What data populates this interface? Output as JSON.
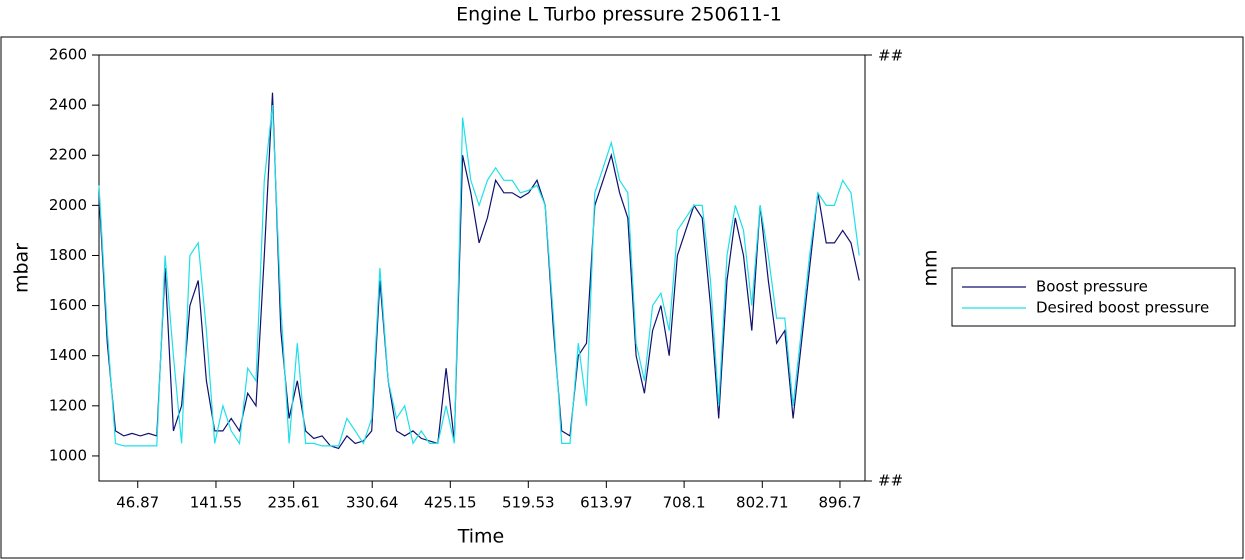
{
  "chart_data": {
    "type": "line",
    "title": "Engine L   Turbo pressure 250611-1",
    "xlabel": "Time",
    "ylabel": "mbar",
    "y2label": "mm",
    "y2tick_labels": [
      "##",
      "##"
    ],
    "xlim": [
      0,
      927
    ],
    "xticks": [
      46.87,
      141.55,
      235.61,
      330.64,
      425.15,
      519.53,
      613.97,
      708.1,
      802.71,
      896.7
    ],
    "ylim": [
      900,
      2600
    ],
    "yticks": [
      1000,
      1200,
      1400,
      1600,
      1800,
      2000,
      2200,
      2400,
      2600
    ],
    "x": [
      0,
      10,
      20,
      30,
      40,
      50,
      60,
      70,
      80,
      90,
      100,
      110,
      120,
      130,
      140,
      150,
      160,
      170,
      180,
      190,
      200,
      210,
      220,
      230,
      240,
      250,
      260,
      270,
      280,
      290,
      300,
      310,
      320,
      330,
      340,
      350,
      360,
      370,
      380,
      390,
      400,
      410,
      420,
      430,
      440,
      450,
      460,
      470,
      480,
      490,
      500,
      510,
      520,
      530,
      540,
      550,
      560,
      570,
      580,
      590,
      600,
      610,
      620,
      630,
      640,
      650,
      660,
      670,
      680,
      690,
      700,
      710,
      720,
      730,
      740,
      750,
      760,
      770,
      780,
      790,
      800,
      810,
      820,
      830,
      840,
      850,
      860,
      870,
      880,
      890,
      900,
      910,
      920
    ],
    "series": [
      {
        "name": "Boost pressure",
        "color": "#101070",
        "values": [
          2050,
          1450,
          1100,
          1080,
          1090,
          1080,
          1090,
          1080,
          1750,
          1100,
          1200,
          1600,
          1700,
          1300,
          1100,
          1100,
          1150,
          1100,
          1250,
          1200,
          1800,
          2450,
          1500,
          1150,
          1300,
          1100,
          1070,
          1080,
          1040,
          1030,
          1080,
          1050,
          1060,
          1100,
          1700,
          1300,
          1100,
          1080,
          1100,
          1070,
          1060,
          1050,
          1350,
          1060,
          2200,
          2050,
          1850,
          1950,
          2100,
          2050,
          2050,
          2030,
          2050,
          2100,
          2000,
          1500,
          1100,
          1080,
          1400,
          1450,
          2000,
          2100,
          2200,
          2050,
          1950,
          1400,
          1250,
          1500,
          1600,
          1400,
          1800,
          1900,
          2000,
          1950,
          1600,
          1150,
          1700,
          1950,
          1800,
          1500,
          2000,
          1700,
          1450,
          1500,
          1150,
          1450,
          1750,
          2050,
          1850,
          1850,
          1900,
          1850,
          1700
        ]
      },
      {
        "name": "Desired boost pressure",
        "color": "#1ee0e8",
        "values": [
          2080,
          1500,
          1050,
          1040,
          1040,
          1040,
          1040,
          1040,
          1800,
          1400,
          1050,
          1800,
          1850,
          1500,
          1050,
          1200,
          1100,
          1050,
          1350,
          1300,
          2100,
          2400,
          1600,
          1050,
          1450,
          1050,
          1050,
          1040,
          1040,
          1040,
          1150,
          1100,
          1050,
          1150,
          1750,
          1300,
          1150,
          1200,
          1050,
          1100,
          1050,
          1050,
          1200,
          1050,
          2350,
          2100,
          2000,
          2100,
          2150,
          2100,
          2100,
          2050,
          2060,
          2080,
          2000,
          1550,
          1050,
          1050,
          1450,
          1200,
          2050,
          2150,
          2250,
          2100,
          2050,
          1450,
          1300,
          1600,
          1650,
          1500,
          1900,
          1950,
          2000,
          2000,
          1700,
          1200,
          1800,
          2000,
          1900,
          1600,
          2000,
          1800,
          1550,
          1550,
          1200,
          1500,
          1800,
          2050,
          2000,
          2000,
          2100,
          2050,
          1800
        ]
      }
    ]
  }
}
